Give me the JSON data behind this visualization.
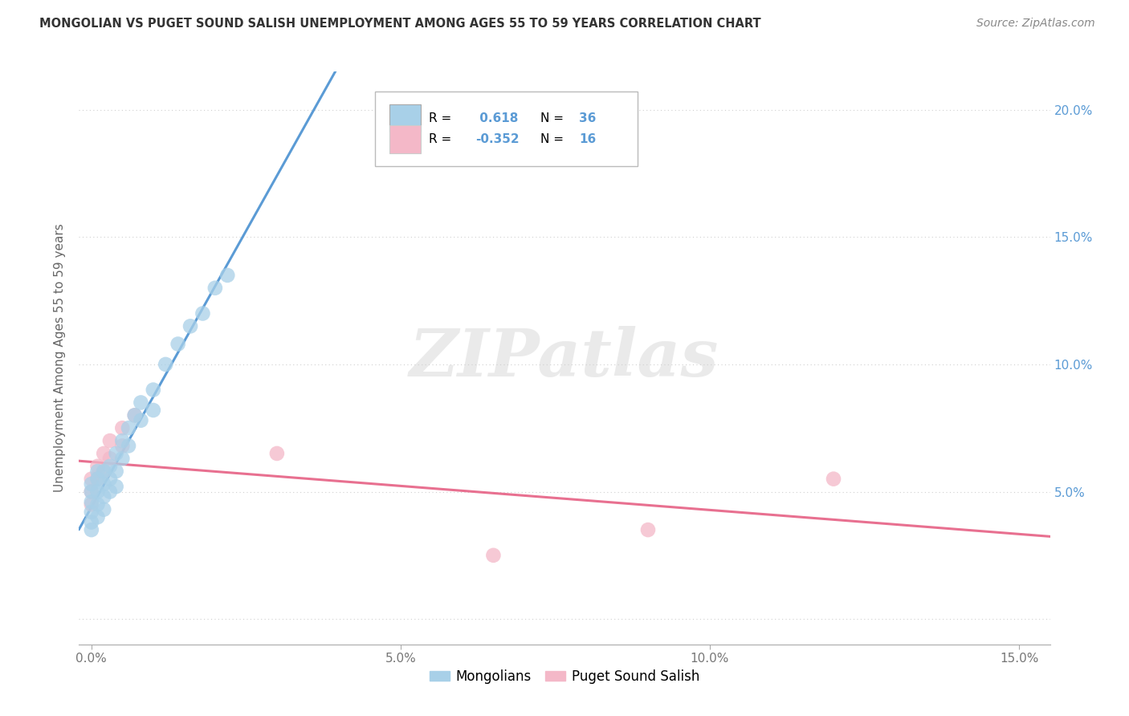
{
  "title": "MONGOLIAN VS PUGET SOUND SALISH UNEMPLOYMENT AMONG AGES 55 TO 59 YEARS CORRELATION CHART",
  "source": "Source: ZipAtlas.com",
  "ylabel": "Unemployment Among Ages 55 to 59 years",
  "xlim": [
    -0.002,
    0.155
  ],
  "ylim": [
    -0.01,
    0.215
  ],
  "xticks": [
    0.0,
    0.05,
    0.1,
    0.15
  ],
  "xtick_labels": [
    "0.0%",
    "5.0%",
    "10.0%",
    "15.0%"
  ],
  "yticks": [
    0.0,
    0.05,
    0.1,
    0.15,
    0.2
  ],
  "ytick_labels_right": [
    "",
    "5.0%",
    "10.0%",
    "15.0%",
    "20.0%"
  ],
  "mongolian_R": 0.618,
  "mongolian_N": 36,
  "puget_R": -0.352,
  "puget_N": 16,
  "mongolian_color": "#a8d0e8",
  "puget_color": "#f4b8c8",
  "mongolian_line_color": "#5b9bd5",
  "puget_line_color": "#e87090",
  "mongolian_x": [
    0.0,
    0.0,
    0.0,
    0.0,
    0.0,
    0.0,
    0.001,
    0.001,
    0.001,
    0.001,
    0.001,
    0.002,
    0.002,
    0.002,
    0.002,
    0.003,
    0.003,
    0.003,
    0.004,
    0.004,
    0.004,
    0.005,
    0.005,
    0.006,
    0.006,
    0.007,
    0.008,
    0.008,
    0.01,
    0.01,
    0.012,
    0.014,
    0.016,
    0.018,
    0.02,
    0.022
  ],
  "mongolian_y": [
    0.05,
    0.053,
    0.046,
    0.042,
    0.038,
    0.035,
    0.058,
    0.055,
    0.05,
    0.045,
    0.04,
    0.058,
    0.053,
    0.048,
    0.043,
    0.06,
    0.055,
    0.05,
    0.065,
    0.058,
    0.052,
    0.07,
    0.063,
    0.075,
    0.068,
    0.08,
    0.085,
    0.078,
    0.09,
    0.082,
    0.1,
    0.108,
    0.115,
    0.12,
    0.13,
    0.135
  ],
  "puget_x": [
    0.0,
    0.0,
    0.0,
    0.001,
    0.001,
    0.002,
    0.002,
    0.003,
    0.003,
    0.005,
    0.005,
    0.007,
    0.03,
    0.065,
    0.09,
    0.12
  ],
  "puget_y": [
    0.055,
    0.05,
    0.045,
    0.06,
    0.055,
    0.065,
    0.058,
    0.07,
    0.063,
    0.075,
    0.068,
    0.08,
    0.065,
    0.025,
    0.035,
    0.055
  ],
  "background_color": "#ffffff",
  "grid_color": "#d0d0d0",
  "watermark_text": "ZIPatlas",
  "legend_labels": [
    "Mongolians",
    "Puget Sound Salish"
  ]
}
